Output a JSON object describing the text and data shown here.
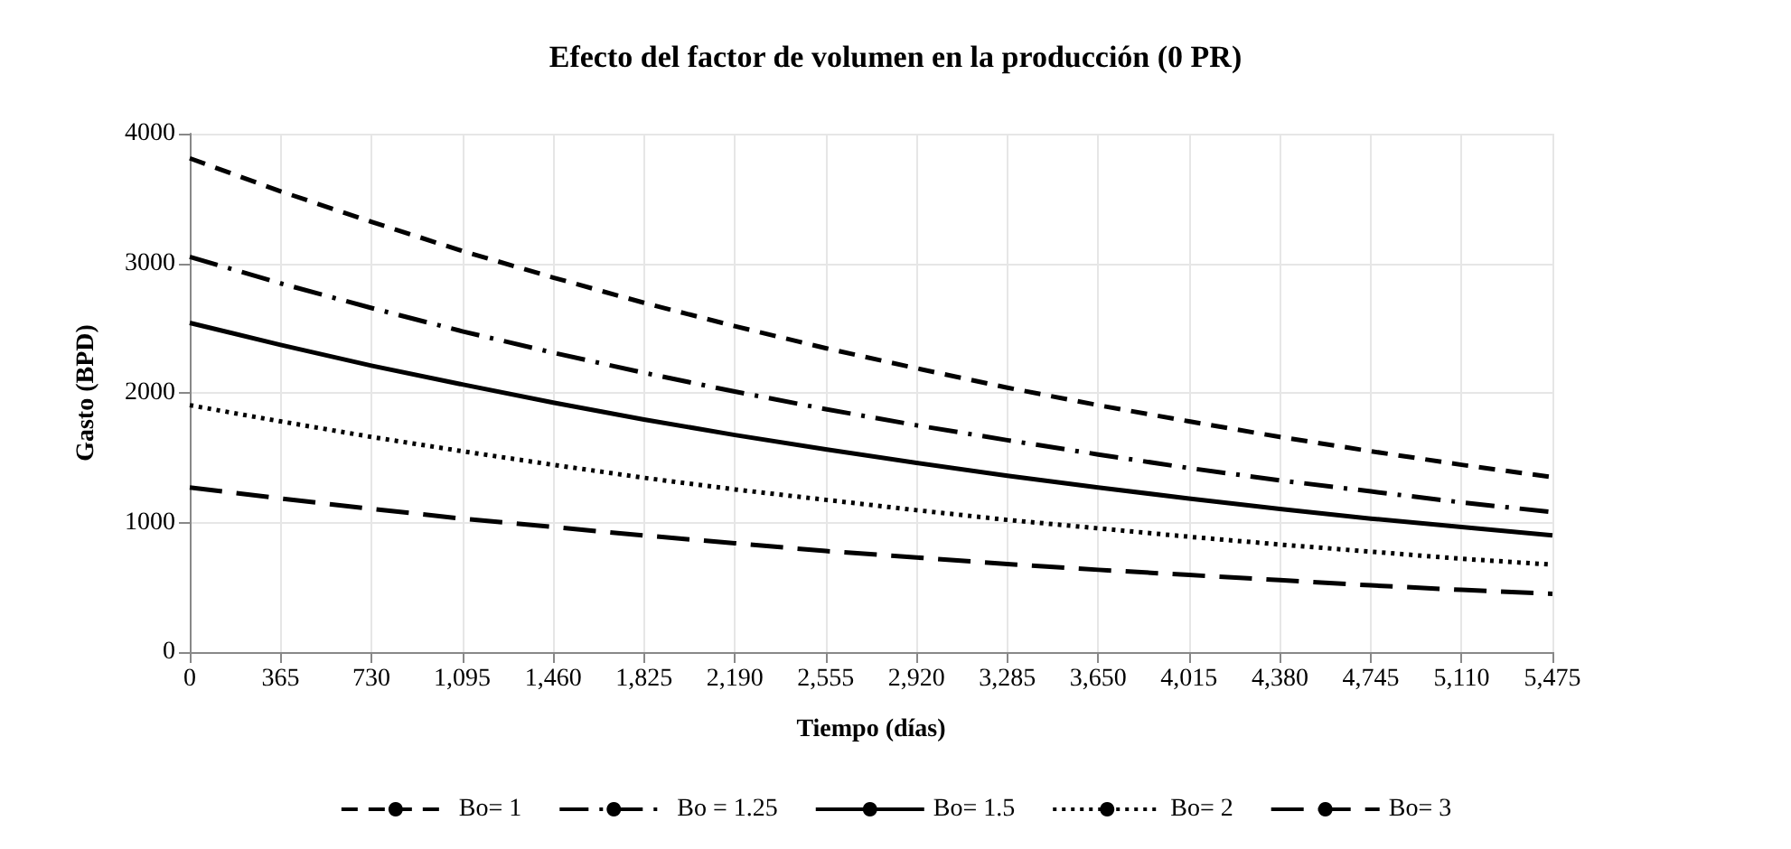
{
  "chart_data": {
    "type": "line",
    "title": "Efecto del factor de volumen en la producción (0 PR)",
    "xlabel": "Tiempo (días)",
    "ylabel": "Gasto (BPD)",
    "x": [
      0,
      365,
      730,
      1095,
      1460,
      1825,
      2190,
      2555,
      2920,
      3285,
      3650,
      4015,
      4380,
      4745,
      5110,
      5475
    ],
    "series": [
      {
        "name": "Bo= 1",
        "color": "#000000",
        "line_style": "dashed",
        "values": [
          3810,
          3555,
          3320,
          3095,
          2890,
          2695,
          2515,
          2345,
          2190,
          2040,
          1905,
          1780,
          1660,
          1550,
          1445,
          1350
        ]
      },
      {
        "name": "Bo = 1.25",
        "color": "#000000",
        "line_style": "dashdot",
        "values": [
          3050,
          2845,
          2655,
          2475,
          2310,
          2155,
          2010,
          1875,
          1750,
          1635,
          1525,
          1420,
          1325,
          1240,
          1155,
          1080
        ]
      },
      {
        "name": "Bo= 1.5",
        "color": "#000000",
        "line_style": "solid",
        "values": [
          2540,
          2370,
          2210,
          2065,
          1925,
          1795,
          1675,
          1565,
          1460,
          1360,
          1270,
          1185,
          1105,
          1030,
          965,
          900
        ]
      },
      {
        "name": "Bo= 2",
        "color": "#000000",
        "line_style": "dotted",
        "values": [
          1905,
          1780,
          1660,
          1550,
          1445,
          1345,
          1255,
          1175,
          1095,
          1020,
          955,
          890,
          830,
          775,
          720,
          675
        ]
      },
      {
        "name": "Bo= 3",
        "color": "#000000",
        "line_style": "longdash",
        "values": [
          1270,
          1185,
          1105,
          1030,
          965,
          900,
          840,
          780,
          730,
          680,
          635,
          595,
          555,
          515,
          480,
          450
        ]
      }
    ],
    "xlim": [
      0,
      5475
    ],
    "xticks": [
      0,
      365,
      730,
      {
        "value": 1095,
        "label": "1,095"
      },
      {
        "value": 1460,
        "label": "1,460"
      },
      {
        "value": 1825,
        "label": "1,825"
      },
      {
        "value": 2190,
        "label": "2,190"
      },
      {
        "value": 2555,
        "label": "2,555"
      },
      {
        "value": 2920,
        "label": "2,920"
      },
      {
        "value": 3285,
        "label": "3,285"
      },
      {
        "value": 3650,
        "label": "3,650"
      },
      {
        "value": 4015,
        "label": "4,015"
      },
      {
        "value": 4380,
        "label": "4,380"
      },
      {
        "value": 4745,
        "label": "4,745"
      },
      {
        "value": 5110,
        "label": "5,110"
      },
      {
        "value": 5475,
        "label": "5,475"
      }
    ],
    "ylim": [
      0,
      4000
    ],
    "yticks": [
      0,
      1000,
      2000,
      3000,
      4000
    ],
    "grid": true,
    "legend": "bottom",
    "marker": "none"
  }
}
